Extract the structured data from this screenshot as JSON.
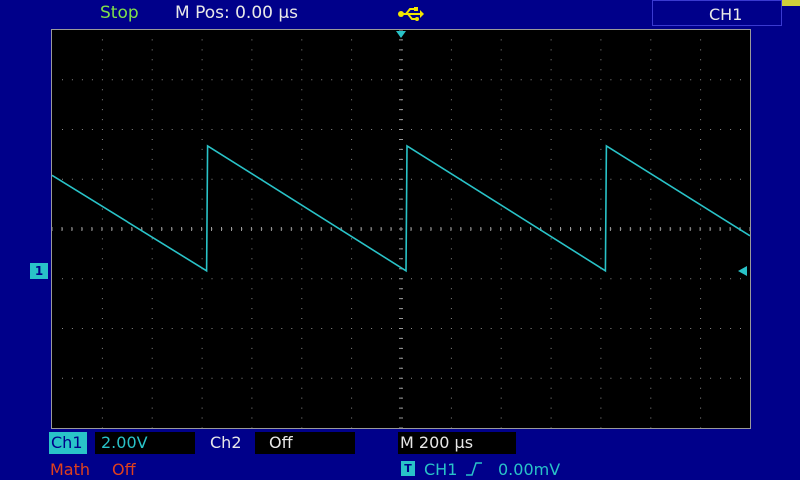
{
  "header": {
    "status": "Stop",
    "m_pos": "M Pos: 0.00 µs",
    "channel_select": "CH1"
  },
  "channels": {
    "ch1": {
      "label": "Ch1",
      "scale": "2.00V",
      "marker": "1",
      "color": "#29c3c8"
    },
    "ch2": {
      "label": "Ch2",
      "state": "Off"
    },
    "math": {
      "label": "Math",
      "state": "Off",
      "color": "#e0401c"
    }
  },
  "timebase": {
    "text": "M 200 µs"
  },
  "trigger": {
    "icon": "T",
    "source": "CH1",
    "edge": "rising-edge-icon",
    "level": "0.00mV"
  },
  "icons": [
    "usb-icon",
    "trigger-position-marker",
    "trigger-level-marker"
  ],
  "colors": {
    "background": "#00008a",
    "screen": "#000000",
    "trace": "#29c3c8",
    "status": "#7fe04a"
  },
  "waveform": {
    "type": "sawtooth-falling",
    "divisions": {
      "x": 14,
      "y": 8
    },
    "volts_per_div": 2.0,
    "time_per_div_us": 200,
    "ground_div_from_top": 4.84,
    "peak_div_from_top": 2.33,
    "trough_div_from_top": 4.84,
    "period_div": 4.0,
    "first_rise_div_from_left": 3.1,
    "start_level_div_from_top": 2.92
  }
}
